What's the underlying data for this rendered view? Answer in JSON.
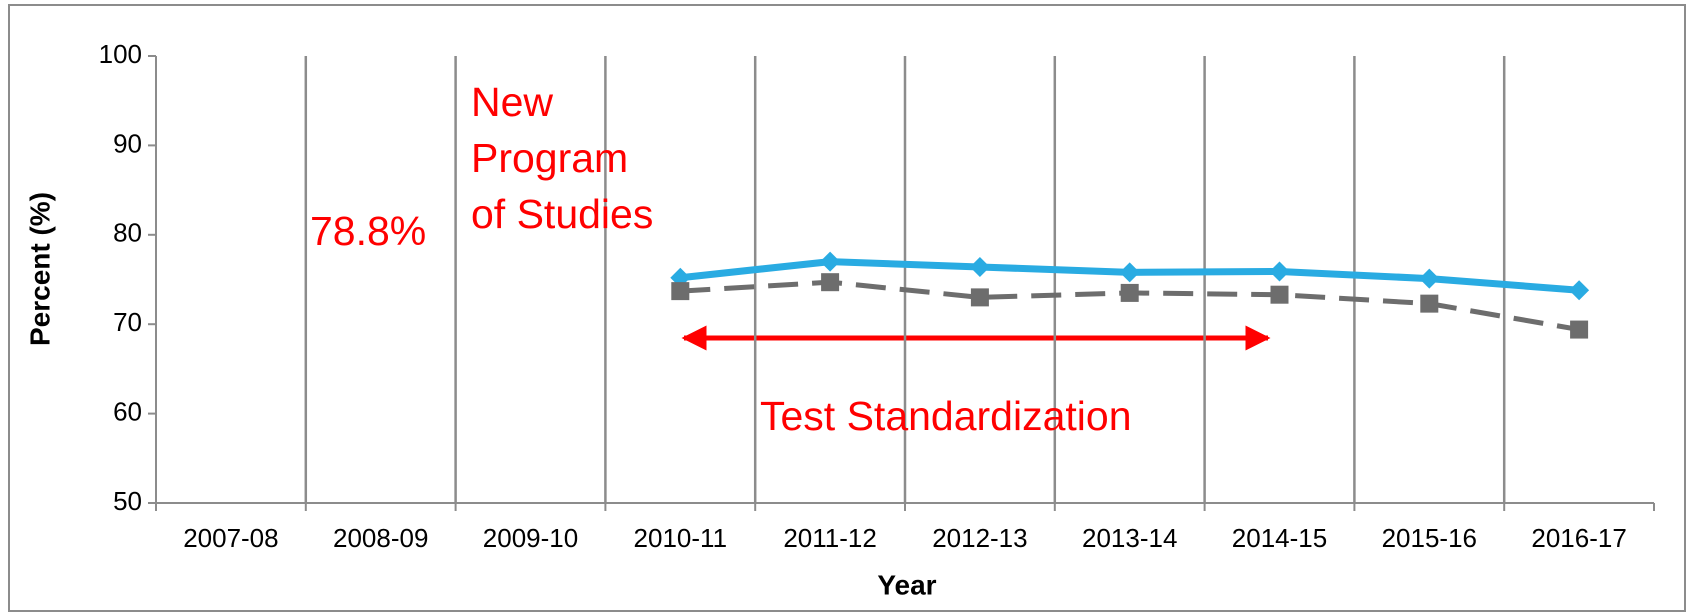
{
  "chart_data": {
    "type": "line",
    "x_label": "Year",
    "y_label": "Percent (%)",
    "categories": [
      "2007-08",
      "2008-09",
      "2009-10",
      "2010-11",
      "2011-12",
      "2012-13",
      "2013-14",
      "2014-15",
      "2015-16",
      "2016-17"
    ],
    "series": [
      {
        "color": "#29abe2",
        "marker": "diamond",
        "dashed": false,
        "values": [
          null,
          null,
          null,
          75.2,
          77.0,
          76.4,
          75.8,
          75.9,
          75.1,
          73.8
        ]
      },
      {
        "color": "#6d6d6d",
        "marker": "square",
        "dashed": true,
        "values": [
          null,
          null,
          null,
          73.7,
          74.7,
          73.0,
          73.5,
          73.3,
          72.3,
          69.4
        ]
      }
    ],
    "ylim": [
      50,
      100
    ],
    "yticks": [
      50,
      60,
      70,
      80,
      90,
      100
    ],
    "annotations": [
      [
        "New",
        "Program",
        "of Studies"
      ],
      [
        "78.8%"
      ],
      [
        "Test Standardization"
      ]
    ]
  }
}
